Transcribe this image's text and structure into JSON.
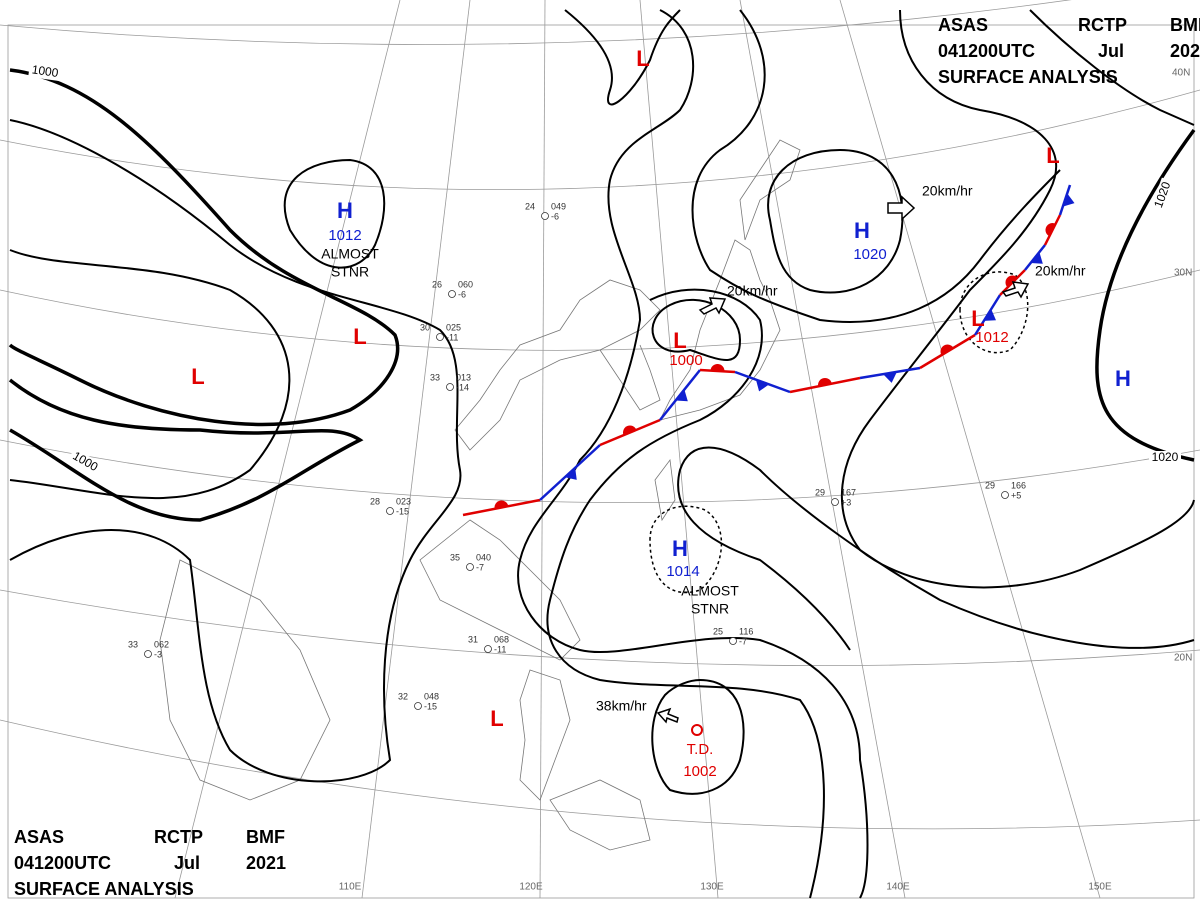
{
  "header": {
    "line1": [
      "ASAS",
      "RCTP",
      "BMF"
    ],
    "line2": [
      "041200UTC",
      "Jul",
      "2021"
    ],
    "line3": "SURFACE ANALYSIS"
  },
  "systems": [
    {
      "label": "H",
      "pressure": 1012
    },
    {
      "label": "H",
      "pressure": 1020
    },
    {
      "label": "H",
      "pressure": 1014
    },
    {
      "label": "H"
    },
    {
      "label": "L",
      "pressure": 1000
    },
    {
      "label": "L",
      "pressure": 1012
    },
    {
      "label": "L"
    },
    {
      "label": "L"
    },
    {
      "label": "L"
    },
    {
      "label": "L"
    },
    {
      "label": "L"
    },
    {
      "label": "T.D.",
      "pressure": 1002
    }
  ],
  "isobar_labels": [
    1000,
    1000,
    1020,
    1020
  ],
  "stationary_notes": [
    [
      "ALMOST",
      "STNR"
    ],
    [
      "ALMOST",
      "STNR"
    ]
  ],
  "motion_labels": [
    "20km/hr",
    "20km/hr",
    "20km/hr",
    "38km/hr"
  ],
  "latitude_labels": [
    "40N",
    "30N",
    "20N"
  ],
  "longitude_labels": [
    "110E",
    "120E",
    "130E",
    "140E",
    "150E"
  ],
  "stations": [
    {
      "temp": 24,
      "pressure": "049",
      "change": "-6"
    },
    {
      "temp": 26,
      "pressure": "060",
      "change": "-6"
    },
    {
      "temp": 30,
      "pressure": "025",
      "change": "-11"
    },
    {
      "temp": 33,
      "pressure": "013",
      "change": "-14"
    },
    {
      "temp": 28,
      "pressure": "023",
      "change": "-15"
    },
    {
      "temp": 35,
      "pressure": "040",
      "change": "-7"
    },
    {
      "temp": 31,
      "pressure": "068",
      "change": "-11"
    },
    {
      "temp": 32,
      "pressure": "048",
      "change": "-15"
    },
    {
      "temp": 29,
      "pressure": "167",
      "change": "+3"
    },
    {
      "temp": 29,
      "pressure": "166",
      "change": "+5"
    },
    {
      "temp": 25,
      "pressure": "116",
      "change": "-7"
    },
    {
      "temp": 33,
      "pressure": "062",
      "change": "-3"
    }
  ]
}
